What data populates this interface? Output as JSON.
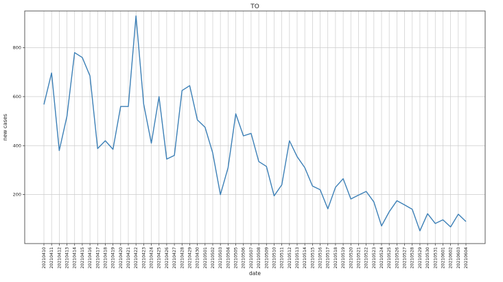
{
  "chart_data": {
    "type": "line",
    "title": "TO",
    "xlabel": "date",
    "ylabel": "new cases",
    "ylim": [
      0,
      950
    ],
    "yticks": [
      200,
      400,
      600,
      800
    ],
    "grid": true,
    "series_color": "#3b7fb6",
    "x": [
      "20210410",
      "20210411",
      "20210412",
      "20210413",
      "20210414",
      "20210415",
      "20210416",
      "20210417",
      "20210418",
      "20210419",
      "20210420",
      "20210421",
      "20210422",
      "20210423",
      "20210424",
      "20210425",
      "20210426",
      "20210427",
      "20210428",
      "20210429",
      "20210430",
      "20210501",
      "20210502",
      "20210503",
      "20210504",
      "20210505",
      "20210506",
      "20210507",
      "20210508",
      "20210509",
      "20210510",
      "20210511",
      "20210512",
      "20210513",
      "20210514",
      "20210515",
      "20210516",
      "20210517",
      "20210518",
      "20210519",
      "20210520",
      "20210521",
      "20210522",
      "20210523",
      "20210524",
      "20210525",
      "20210526",
      "20210527",
      "20210528",
      "20210529",
      "20210530",
      "20210531",
      "20210601",
      "20210602",
      "20210603",
      "20210604"
    ],
    "series": [
      {
        "values": [
          568,
          697,
          380,
          520,
          780,
          760,
          685,
          388,
          420,
          385,
          560,
          560,
          930,
          570,
          410,
          600,
          345,
          360,
          625,
          645,
          505,
          475,
          370,
          200,
          310,
          530,
          440,
          450,
          335,
          315,
          195,
          240,
          420,
          355,
          310,
          235,
          220,
          142,
          230,
          265,
          182,
          198,
          213,
          170,
          72,
          130,
          175,
          158,
          140,
          52,
          122,
          82,
          97,
          68,
          120,
          90
        ]
      }
    ]
  }
}
